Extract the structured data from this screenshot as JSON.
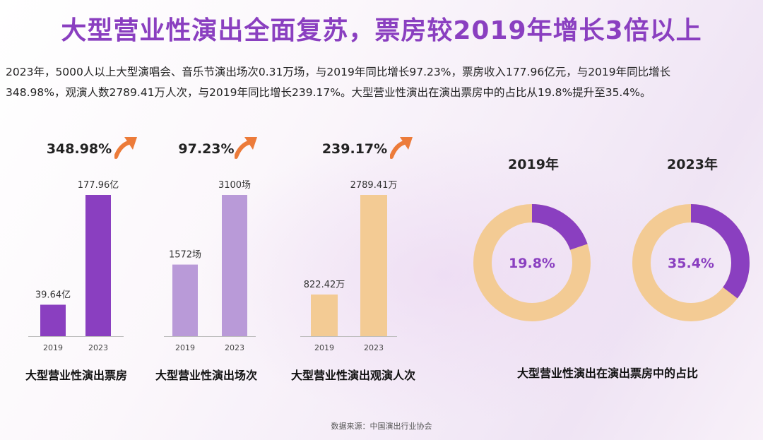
{
  "title": "大型营业性演出全面复苏，票房较2019年增长3倍以上",
  "summary_line1": "2023年，5000人以上大型演唱会、音乐节演出场次0.31万场，与2019年同比增长97.23%，票房收入177.96亿元，与2019年同比增长",
  "summary_line2": "348.98%，观演人数2789.41万人次，与2019年同比增长239.17%。大型营业性演出在演出票房中的占比从19.8%提升至35.4%。",
  "source": "数据来源：中国演出行业协会",
  "colors": {
    "title": "#8a3fc0",
    "purple_dark": "#8a3fc0",
    "purple_light": "#b99ad8",
    "peach": "#f3cb94",
    "arrow": "#ec7b3a"
  },
  "chart_data": [
    {
      "type": "bar",
      "title": "大型营业性演出票房",
      "growth_label": "348.98%",
      "categories": [
        "2019",
        "2023"
      ],
      "values": [
        39.64,
        177.96
      ],
      "value_labels": [
        "39.64亿",
        "177.96亿"
      ],
      "unit": "亿",
      "color": "#8a3fc0"
    },
    {
      "type": "bar",
      "title": "大型营业性演出场次",
      "growth_label": "97.23%",
      "categories": [
        "2019",
        "2023"
      ],
      "values": [
        1572,
        3100
      ],
      "value_labels": [
        "1572场",
        "3100场"
      ],
      "unit": "场",
      "color": "#b99ad8"
    },
    {
      "type": "bar",
      "title": "大型营业性演出观演人次",
      "growth_label": "239.17%",
      "categories": [
        "2019",
        "2023"
      ],
      "values": [
        822.42,
        2789.41
      ],
      "value_labels": [
        "822.42万",
        "2789.41万"
      ],
      "unit": "万",
      "color": "#f3cb94"
    },
    {
      "type": "pie",
      "title": "大型营业性演出在演出票房中的占比",
      "donuts": [
        {
          "year_label": "2019年",
          "share": 19.8,
          "label": "19.8%"
        },
        {
          "year_label": "2023年",
          "share": 35.4,
          "label": "35.4%"
        }
      ],
      "highlight_color": "#8a3fc0",
      "rest_color": "#f3cb94"
    }
  ]
}
